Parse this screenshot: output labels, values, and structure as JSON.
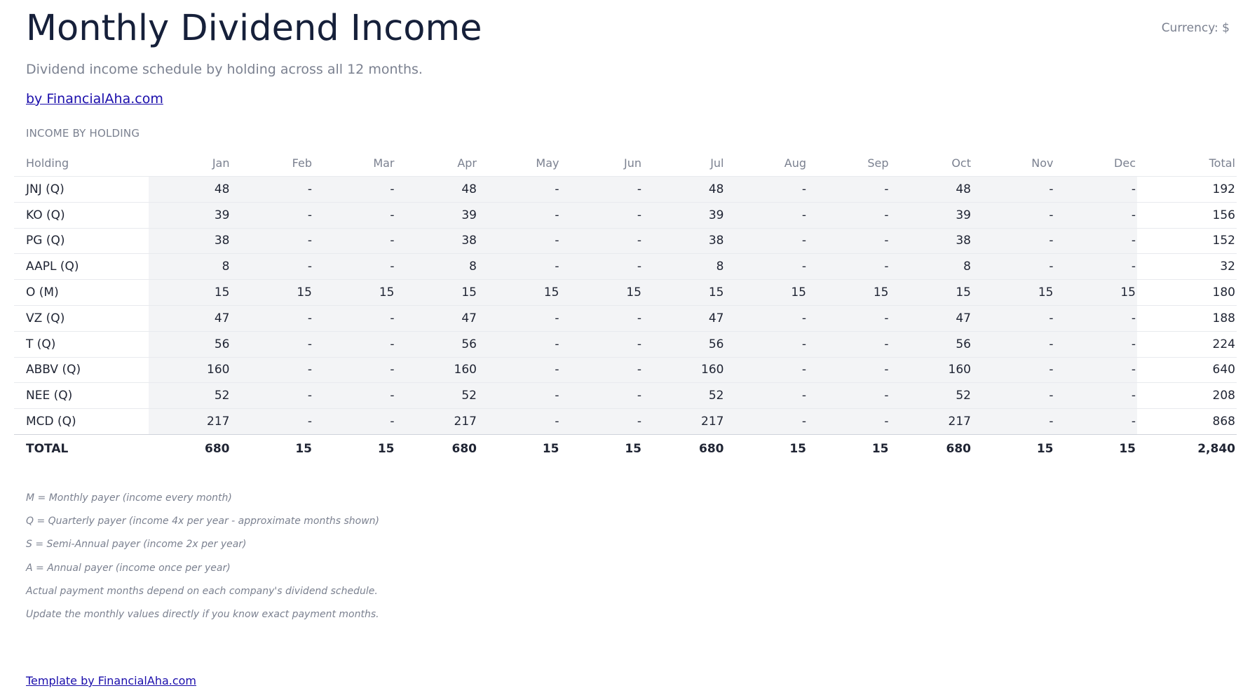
{
  "header": {
    "title": "Monthly Dividend Income",
    "currency": "Currency: $",
    "subtitle": "Dividend income schedule by holding across all 12 months.",
    "by_link": "by FinancialAha.com"
  },
  "section_label": "INCOME BY HOLDING",
  "table": {
    "columns": [
      "Holding",
      "Jan",
      "Feb",
      "Mar",
      "Apr",
      "May",
      "Jun",
      "Jul",
      "Aug",
      "Sep",
      "Oct",
      "Nov",
      "Dec",
      "Total"
    ],
    "rows": [
      [
        "JNJ (Q)",
        "48",
        "-",
        "-",
        "48",
        "-",
        "-",
        "48",
        "-",
        "-",
        "48",
        "-",
        "-",
        "192"
      ],
      [
        "KO (Q)",
        "39",
        "-",
        "-",
        "39",
        "-",
        "-",
        "39",
        "-",
        "-",
        "39",
        "-",
        "-",
        "156"
      ],
      [
        "PG (Q)",
        "38",
        "-",
        "-",
        "38",
        "-",
        "-",
        "38",
        "-",
        "-",
        "38",
        "-",
        "-",
        "152"
      ],
      [
        "AAPL (Q)",
        "8",
        "-",
        "-",
        "8",
        "-",
        "-",
        "8",
        "-",
        "-",
        "8",
        "-",
        "-",
        "32"
      ],
      [
        "O (M)",
        "15",
        "15",
        "15",
        "15",
        "15",
        "15",
        "15",
        "15",
        "15",
        "15",
        "15",
        "15",
        "180"
      ],
      [
        "VZ (Q)",
        "47",
        "-",
        "-",
        "47",
        "-",
        "-",
        "47",
        "-",
        "-",
        "47",
        "-",
        "-",
        "188"
      ],
      [
        "T (Q)",
        "56",
        "-",
        "-",
        "56",
        "-",
        "-",
        "56",
        "-",
        "-",
        "56",
        "-",
        "-",
        "224"
      ],
      [
        "ABBV (Q)",
        "160",
        "-",
        "-",
        "160",
        "-",
        "-",
        "160",
        "-",
        "-",
        "160",
        "-",
        "-",
        "640"
      ],
      [
        "NEE (Q)",
        "52",
        "-",
        "-",
        "52",
        "-",
        "-",
        "52",
        "-",
        "-",
        "52",
        "-",
        "-",
        "208"
      ],
      [
        "MCD (Q)",
        "217",
        "-",
        "-",
        "217",
        "-",
        "-",
        "217",
        "-",
        "-",
        "217",
        "-",
        "-",
        "868"
      ]
    ],
    "total": [
      "TOTAL",
      "680",
      "15",
      "15",
      "680",
      "15",
      "15",
      "680",
      "15",
      "15",
      "680",
      "15",
      "15",
      "2,840"
    ]
  },
  "notes": [
    "M = Monthly payer (income every month)",
    "Q = Quarterly payer (income 4x per year - approximate months shown)",
    "S = Semi-Annual payer (income 2x per year)",
    "A = Annual payer (income once per year)",
    "Actual payment months depend on each company's dividend schedule.",
    "Update the monthly values directly if you know exact payment months."
  ],
  "footer": {
    "link": "Template by FinancialAha.com"
  }
}
